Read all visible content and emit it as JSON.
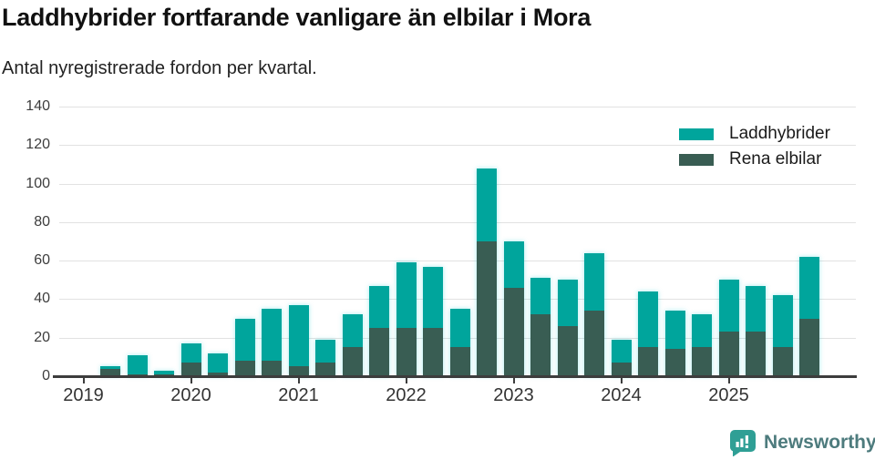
{
  "header": {
    "title": "Laddhybrider fortfarande vanligare än elbilar i Mora",
    "subtitle": "Antal nyregistrerade fordon per kvartal."
  },
  "legend": [
    {
      "label": "Laddhybrider",
      "color": "#00a59c"
    },
    {
      "label": "Rena elbilar",
      "color": "#395d53"
    }
  ],
  "footer": {
    "brand": "Newsworthy",
    "logo_color": "#2f9f95",
    "text_color": "#4d7b7d"
  },
  "chart_data": {
    "type": "bar",
    "stacked": true,
    "title": "Laddhybrider fortfarande vanligare än elbilar i Mora",
    "xlabel": "",
    "ylabel": "Antal nyregistrerade fordon per kvartal",
    "ylim": [
      0,
      140
    ],
    "grid": "horizontal",
    "legend_position": "top-right",
    "x": [
      "2019 K1",
      "2019 K2",
      "2019 K3",
      "2019 K4",
      "2020 K1",
      "2020 K2",
      "2020 K3",
      "2020 K4",
      "2021 K1",
      "2021 K2",
      "2021 K3",
      "2021 K4",
      "2022 K1",
      "2022 K2",
      "2022 K3",
      "2022 K4",
      "2023 K1",
      "2023 K2",
      "2023 K3",
      "2023 K4",
      "2024 K1",
      "2024 K2",
      "2024 K3",
      "2024 K4",
      "2025 K1",
      "2025 K2",
      "2025 K3",
      "2025 K4"
    ],
    "series": [
      {
        "name": "Laddhybrider",
        "color": "#00a59c",
        "values": [
          0,
          1,
          10,
          2,
          10,
          10,
          22,
          27,
          32,
          12,
          17,
          22,
          34,
          32,
          20,
          38,
          24,
          19,
          24,
          30,
          12,
          29,
          20,
          17,
          27,
          24,
          27,
          32
        ]
      },
      {
        "name": "Rena elbilar",
        "color": "#395d53",
        "values": [
          0,
          4,
          1,
          1,
          7,
          2,
          8,
          8,
          5,
          7,
          15,
          25,
          25,
          25,
          15,
          70,
          46,
          32,
          26,
          34,
          7,
          15,
          14,
          15,
          23,
          23,
          15,
          30
        ]
      }
    ],
    "totals": [
      0,
      5,
      11,
      3,
      17,
      12,
      30,
      35,
      37,
      19,
      32,
      47,
      59,
      57,
      35,
      108,
      70,
      51,
      50,
      64,
      19,
      44,
      34,
      32,
      50,
      47,
      42,
      62
    ],
    "yticks": [
      0,
      20,
      40,
      60,
      80,
      100,
      120,
      140
    ],
    "xticks": [
      {
        "label": "2019",
        "index": 0
      },
      {
        "label": "2020",
        "index": 4
      },
      {
        "label": "2021",
        "index": 8
      },
      {
        "label": "2022",
        "index": 12
      },
      {
        "label": "2023",
        "index": 16
      },
      {
        "label": "2024",
        "index": 20
      },
      {
        "label": "2025",
        "index": 24
      }
    ]
  }
}
